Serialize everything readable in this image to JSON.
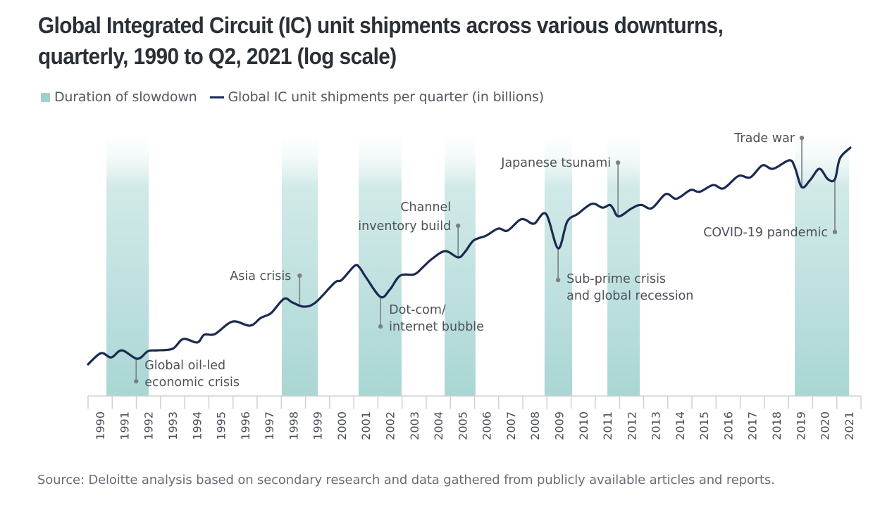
{
  "title": "Global Integrated Circuit (IC) unit shipments across various downturns, quarterly, 1990 to Q2, 2021 (log scale)",
  "legend": {
    "band_label": "Duration of slowdown",
    "line_label": "Global IC unit shipments per quarter (in billions)"
  },
  "source": "Source: Deloitte analysis based on secondary research and data gathered from publicly available articles and reports.",
  "colors": {
    "line": "#1b2a52",
    "band": "#a9d6d3",
    "annotation": "#7c7f83",
    "axis": "#cfd1d3",
    "title": "#2b2f36"
  },
  "chart_data": {
    "type": "line",
    "title": "Global Integrated Circuit (IC) unit shipments across various downturns, quarterly, 1990 to Q2, 2021 (log scale)",
    "xlabel": "",
    "ylabel": "Global IC unit shipments per quarter (in billions)",
    "yscale": "log",
    "y_axis_shown": false,
    "note": "No y-axis ticks are printed; values are approximate estimates on a log scale.",
    "xlim": [
      1990,
      2022
    ],
    "ylim": [
      8,
      420
    ],
    "grid": false,
    "legend_position": "top-left",
    "x_tick_labels": [
      "1990",
      "1991",
      "1992",
      "1993",
      "1994",
      "1995",
      "1996",
      "1997",
      "1998",
      "1999",
      "2000",
      "2001",
      "2002",
      "2003",
      "2004",
      "2005",
      "2006",
      "2007",
      "2008",
      "2009",
      "2010",
      "2011",
      "2012",
      "2013",
      "2014",
      "2015",
      "2016",
      "2017",
      "2018",
      "2019",
      "2020",
      "2021"
    ],
    "series": [
      {
        "name": "Global IC unit shipments per quarter (in billions)",
        "x": [
          1990.0,
          1990.53,
          1990.96,
          1991.4,
          1992.04,
          1992.48,
          1992.83,
          1993.5,
          1993.94,
          1994.52,
          1994.81,
          1995.25,
          1995.98,
          1996.71,
          1997.15,
          1997.58,
          1998.11,
          1998.46,
          1998.93,
          1999.42,
          2000.21,
          2000.5,
          2001.03,
          2001.23,
          2001.52,
          2002.11,
          2002.49,
          2002.92,
          2003.51,
          2003.86,
          2004.24,
          2004.79,
          2005.32,
          2005.61,
          2005.96,
          2006.48,
          2006.98,
          2007.36,
          2007.85,
          2008.09,
          2008.47,
          2008.96,
          2009.46,
          2009.84,
          2010.27,
          2010.86,
          2011.3,
          2011.59,
          2011.73,
          2011.97,
          2012.52,
          2012.9,
          2013.34,
          2013.92,
          2014.36,
          2014.94,
          2015.32,
          2015.88,
          2016.31,
          2016.93,
          2017.42,
          2017.92,
          2018.36,
          2019.03,
          2019.26,
          2019.55,
          2019.9,
          2020.28,
          2020.63,
          2020.92,
          2021.13,
          2021.56
        ],
        "values": [
          15.0,
          17.5,
          16.5,
          18.2,
          16.2,
          18.0,
          18.2,
          18.6,
          21.3,
          20.3,
          22.6,
          22.8,
          27.1,
          25.6,
          28.5,
          30.5,
          37.1,
          35.3,
          33.3,
          35.3,
          46.4,
          48.2,
          58.5,
          57.4,
          49.6,
          38.1,
          42.1,
          51.1,
          52.1,
          57.4,
          64.5,
          71.8,
          65.8,
          71.1,
          83.1,
          88.9,
          98.0,
          95.2,
          110,
          111,
          105,
          120,
          74.6,
          108,
          120,
          138,
          131,
          136,
          130,
          116,
          130,
          136,
          130,
          158,
          148,
          167,
          163,
          179,
          171,
          203,
          199,
          235,
          224,
          252,
          229,
          174,
          192,
          224,
          194,
          194,
          259,
          300
        ]
      }
    ],
    "bands": [
      {
        "label": "Duration of slowdown",
        "start": 1990.76,
        "end": 1992.51
      },
      {
        "label": "Duration of slowdown",
        "start": 1998.02,
        "end": 1999.51
      },
      {
        "label": "Duration of slowdown",
        "start": 2001.2,
        "end": 2002.98
      },
      {
        "label": "Duration of slowdown",
        "start": 2004.76,
        "end": 2006.04
      },
      {
        "label": "Duration of slowdown",
        "start": 2008.9,
        "end": 2010.04
      },
      {
        "label": "Duration of slowdown",
        "start": 2011.5,
        "end": 2012.84
      },
      {
        "label": "Duration of slowdown",
        "start": 2019.26,
        "end": 2021.51
      }
    ],
    "annotations": [
      {
        "lines": [
          "Global oil-led",
          "economic crisis"
        ],
        "x": 1991.99,
        "direction": "below",
        "align": "start"
      },
      {
        "lines": [
          "Asia crisis"
        ],
        "x": 1998.76,
        "direction": "above",
        "align": "end"
      },
      {
        "lines": [
          "Dot-com/",
          "internet bubble"
        ],
        "x": 2002.11,
        "direction": "below",
        "align": "start"
      },
      {
        "lines": [
          "Channel",
          "inventory build"
        ],
        "x": 2005.32,
        "direction": "above",
        "align": "end"
      },
      {
        "lines": [
          "Sub-prime crisis",
          "and global recession"
        ],
        "x": 2009.46,
        "direction": "below",
        "align": "start"
      },
      {
        "lines": [
          "Japanese tsunami"
        ],
        "x": 2011.94,
        "direction": "above",
        "align": "end"
      },
      {
        "lines": [
          "Trade war"
        ],
        "x": 2019.55,
        "direction": "above",
        "align": "end"
      },
      {
        "lines": [
          "COVID-19 pandemic"
        ],
        "x": 2020.92,
        "direction": "below",
        "align": "end"
      }
    ]
  }
}
